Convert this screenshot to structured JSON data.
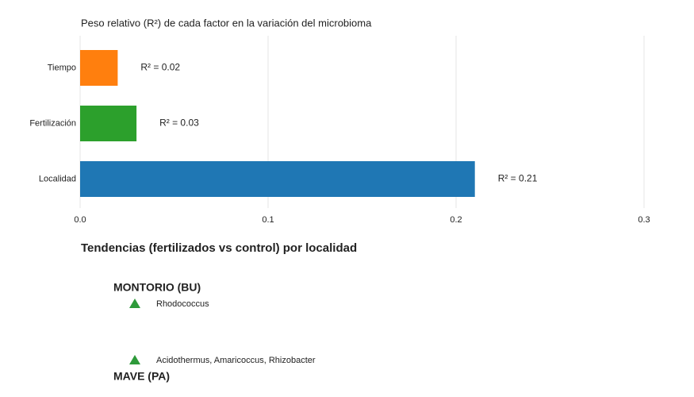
{
  "chart_data": {
    "type": "hbar",
    "title": "Peso relativo (R²) de cada factor en la variación del microbioma",
    "categories": [
      "Tiempo",
      "Fertilización",
      "Localidad"
    ],
    "values": [
      0.02,
      0.03,
      0.21
    ],
    "value_labels": [
      "R² = 0.02",
      "R² = 0.03",
      "R² = 0.21"
    ],
    "colors": [
      "#ff7f0e",
      "#2ca02c",
      "#1f77b4"
    ],
    "xlim": [
      0,
      0.3
    ],
    "xticks": [
      {
        "value": 0,
        "label": "0.0"
      },
      0.1,
      0.2,
      0.3
    ],
    "grid": true
  },
  "trends": {
    "title": "Tendencias (fertilizados vs control) por localidad",
    "groups": [
      {
        "name": "MONTORIO (BU)",
        "items": [
          "Rhodococcus",
          "Acidothermus, Amaricoccus, Rhizobacter"
        ]
      },
      {
        "name": "MAVE (PA)",
        "items": []
      }
    ]
  }
}
